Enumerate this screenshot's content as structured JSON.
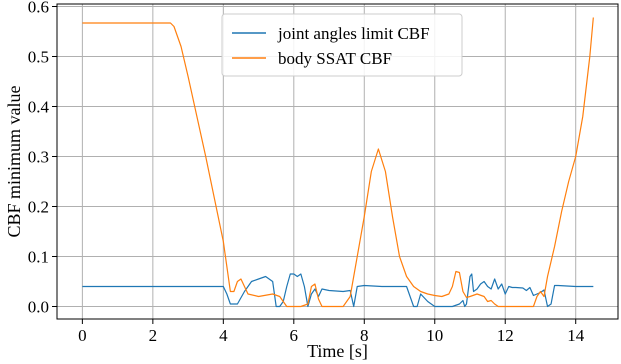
{
  "chart_data": {
    "type": "line",
    "title": "",
    "xlabel": "Time [s]",
    "ylabel": "CBF minimum value",
    "xlim": [
      -0.72,
      15.2
    ],
    "ylim": [
      -0.025,
      0.605
    ],
    "xticks": [
      0,
      2,
      4,
      6,
      8,
      10,
      12,
      14
    ],
    "yticks": [
      0.0,
      0.1,
      0.2,
      0.3,
      0.4,
      0.5,
      0.6
    ],
    "ytick_labels": [
      "0.0",
      "0.1",
      "0.2",
      "0.3",
      "0.4",
      "0.5",
      "0.6"
    ],
    "grid": true,
    "legend_position": "top-center",
    "series": [
      {
        "name": "joint angles limit CBF",
        "color": "#1f77b4",
        "x": [
          0,
          1,
          2,
          3,
          4.0,
          4.1,
          4.2,
          4.4,
          4.6,
          4.8,
          5.0,
          5.2,
          5.4,
          5.5,
          5.6,
          5.7,
          5.8,
          5.9,
          6.0,
          6.1,
          6.2,
          6.3,
          6.4,
          6.5,
          6.6,
          6.7,
          6.8,
          7.0,
          7.4,
          7.6,
          7.7,
          7.8,
          8.0,
          8.5,
          9.0,
          9.2,
          9.3,
          9.4,
          9.5,
          9.6,
          9.8,
          10.0,
          10.5,
          10.7,
          10.8,
          10.85,
          10.9,
          11.0,
          11.05,
          11.1,
          11.2,
          11.3,
          11.4,
          11.5,
          11.6,
          11.7,
          11.8,
          11.9,
          12.0,
          12.1,
          12.2,
          12.3,
          12.5,
          12.6,
          12.7,
          12.8,
          12.9,
          13.0,
          13.1,
          13.2,
          13.3,
          13.4,
          13.5,
          14.0,
          14.5
        ],
        "y": [
          0.04,
          0.04,
          0.04,
          0.04,
          0.04,
          0.025,
          0.005,
          0.005,
          0.03,
          0.05,
          0.055,
          0.06,
          0.05,
          0.0,
          0.0,
          0.01,
          0.04,
          0.065,
          0.065,
          0.06,
          0.065,
          0.04,
          0.0,
          0.025,
          0.035,
          0.02,
          0.035,
          0.032,
          0.03,
          0.032,
          0.0,
          0.04,
          0.042,
          0.04,
          0.04,
          0.04,
          0.02,
          0.0,
          0.0,
          0.025,
          0.01,
          0.0,
          0.0,
          0.005,
          0.012,
          0.0,
          0.005,
          0.06,
          0.065,
          0.03,
          0.035,
          0.045,
          0.05,
          0.04,
          0.035,
          0.055,
          0.035,
          0.045,
          0.025,
          0.04,
          0.038,
          0.038,
          0.037,
          0.032,
          0.038,
          0.022,
          0.025,
          0.028,
          0.033,
          0.0,
          0.005,
          0.042,
          0.042,
          0.04,
          0.04
        ]
      },
      {
        "name": "body SSAT CBF",
        "color": "#ff7f0e",
        "x": [
          0,
          1,
          2,
          2.5,
          2.6,
          2.8,
          3.0,
          3.5,
          4.0,
          4.2,
          4.3,
          4.4,
          4.5,
          4.7,
          5.0,
          5.4,
          5.6,
          5.8,
          6.0,
          6.2,
          6.4,
          6.5,
          6.6,
          6.7,
          6.8,
          7.0,
          7.4,
          7.6,
          7.8,
          8.0,
          8.2,
          8.4,
          8.6,
          8.8,
          9.0,
          9.2,
          9.4,
          9.6,
          9.8,
          10.0,
          10.2,
          10.4,
          10.5,
          10.6,
          10.7,
          10.8,
          10.9,
          11.0,
          11.2,
          11.4,
          11.5,
          11.6,
          11.7,
          11.8,
          12.0,
          12.5,
          12.8,
          12.9,
          13.0,
          13.1,
          13.2,
          13.4,
          13.6,
          13.8,
          14.0,
          14.2,
          14.4,
          14.5
        ],
        "y": [
          0.567,
          0.567,
          0.567,
          0.567,
          0.56,
          0.52,
          0.46,
          0.3,
          0.13,
          0.03,
          0.03,
          0.05,
          0.055,
          0.025,
          0.02,
          0.025,
          0.02,
          0.0,
          0.0,
          0.0,
          0.005,
          0.04,
          0.045,
          0.015,
          0.0,
          0.0,
          0.0,
          0.02,
          0.1,
          0.18,
          0.27,
          0.315,
          0.27,
          0.18,
          0.1,
          0.06,
          0.04,
          0.03,
          0.025,
          0.022,
          0.02,
          0.025,
          0.04,
          0.07,
          0.068,
          0.03,
          0.018,
          0.02,
          0.025,
          0.02,
          0.01,
          0.012,
          0.005,
          0.0,
          0.0,
          0.0,
          0.0,
          0.02,
          0.03,
          0.02,
          0.06,
          0.12,
          0.19,
          0.25,
          0.3,
          0.38,
          0.5,
          0.578
        ]
      }
    ]
  }
}
